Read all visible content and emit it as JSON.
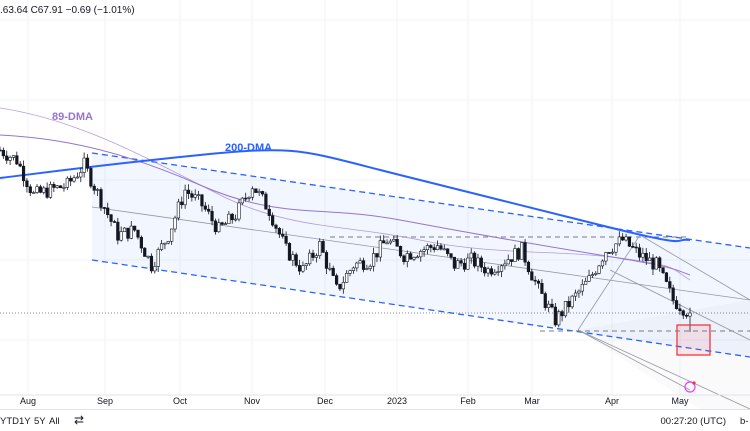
{
  "legend": {
    "ohlc_text": ".63.64 C67.91 −0.69 (−1.01%)"
  },
  "colors": {
    "up": "#131722",
    "down": "#131722",
    "ma200": "#2962ff",
    "ma89": "#9575cd",
    "channel": "#2962ff",
    "highlight": "#f23645",
    "grid": "#f0f3fa"
  },
  "chart_data": {
    "type": "candlestick",
    "title": "",
    "x_ticks": [
      "Aug",
      "Sep",
      "Oct",
      "Nov",
      "Dec",
      "2023",
      "Feb",
      "Mar",
      "Apr",
      "May"
    ],
    "close_path": [
      100.5,
      98.5,
      91.5,
      92.5,
      93.5,
      97.5,
      90.5,
      83.5,
      84.5,
      77.5,
      83.5,
      92.5,
      89.5,
      84.5,
      87.5,
      93.5,
      88.5,
      80.5,
      76.5,
      81.5,
      72.5,
      77.5,
      78.5,
      82.5,
      79.5,
      80.5,
      81.5,
      77.5,
      78.5,
      76.5,
      78.5,
      80.5,
      72.5,
      66.5,
      70.5,
      74.5,
      80.5,
      82.5,
      79.5,
      77.5,
      70.5,
      67.91
    ],
    "last_close": 67.91,
    "annotations": [
      {
        "label": "89-DMA",
        "color": "#9575cd"
      },
      {
        "label": "200-DMA",
        "color": "#2962ff"
      }
    ],
    "grid": true
  },
  "bottombar": {
    "ranges": [
      "YTD",
      "1Y",
      "5Y",
      "All"
    ],
    "time": "00:27:20 (UTC)",
    "extra": "b-"
  }
}
